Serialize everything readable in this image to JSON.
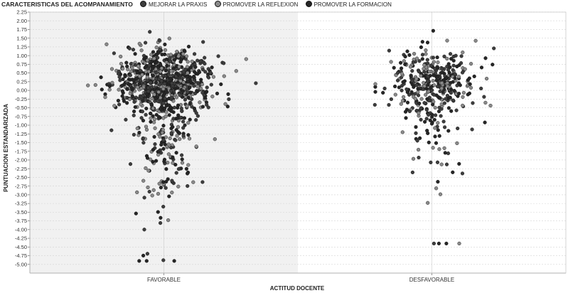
{
  "legend": {
    "title": "CARACTERISTICAS DEL ACOMPANAMIENTO",
    "items": [
      {
        "label": "MEJORAR LA PRAXIS",
        "color": "#3d3d3d"
      },
      {
        "label": "PROMOVER LA REFLEXION",
        "color": "#8a8a8a"
      },
      {
        "label": "PROMOVER LA FORMACION",
        "color": "#262626"
      }
    ]
  },
  "chart_data": {
    "type": "scatter",
    "subtype": "jitter-strip",
    "xlabel": "ACTITUD DOCENTE",
    "ylabel": "PUNTUACION ESTANDARIZADA",
    "categories": [
      "FAVORABLE",
      "DESFAVORABLE"
    ],
    "ylim": [
      -5.25,
      2.25
    ],
    "yticks": [
      "2.25",
      "2.00",
      "1.75",
      "1.50",
      "1.25",
      "1.00",
      "0.75",
      "0.50",
      "0.25",
      "0.00",
      "-0.25",
      "-0.50",
      "-0.75",
      "-1.00",
      "-1.25",
      "-1.50",
      "-1.75",
      "-2.00",
      "-2.25",
      "-2.50",
      "-2.75",
      "-3.00",
      "-3.25",
      "-3.50",
      "-3.75",
      "-4.00",
      "-4.25",
      "-4.50",
      "-4.75",
      "-5.00"
    ],
    "grid": true,
    "legend_position": "top-left",
    "groups": [
      {
        "category": "FAVORABLE",
        "n_points_approx": 1000,
        "y_min": -4.9,
        "y_max": 1.95,
        "y_median_approx": 0.3
      },
      {
        "category": "DESFAVORABLE",
        "n_points_approx": 420,
        "y_min": -4.4,
        "y_max": 2.0,
        "y_median_approx": 0.3
      }
    ]
  }
}
